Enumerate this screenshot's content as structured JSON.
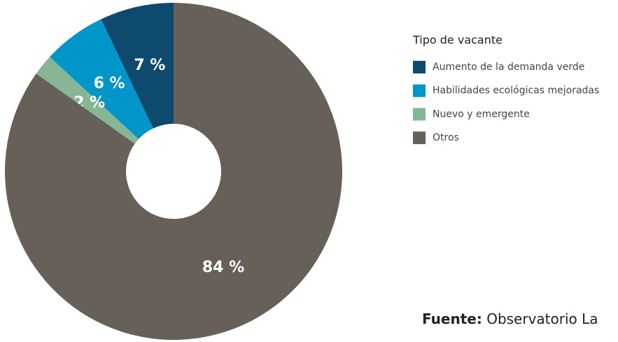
{
  "chart_data": {
    "type": "pie",
    "legend_title": "Tipo de vacante",
    "categories": [
      "Aumento de la demanda verde",
      "Habilidades ecológicas mejoradas",
      "Nuevo y emergente",
      "Otros"
    ],
    "values": [
      7,
      6,
      2,
      84
    ],
    "value_labels": [
      "7 %",
      "6 %",
      "2 %",
      "84 %"
    ],
    "colors": [
      "#0e4a6e",
      "#0096c9",
      "#86b693",
      "#666058"
    ],
    "source_label": "Fuente:",
    "source_text": "Observatorio La"
  }
}
